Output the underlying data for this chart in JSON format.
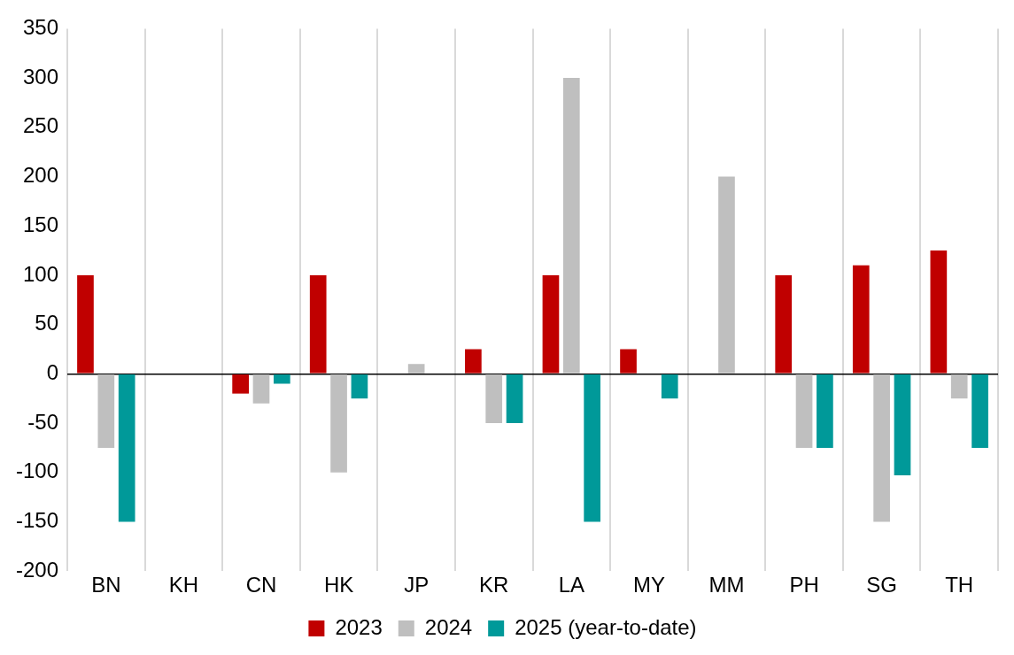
{
  "chart_data": {
    "type": "bar",
    "categories": [
      "BN",
      "KH",
      "CN",
      "HK",
      "JP",
      "KR",
      "LA",
      "MY",
      "MM",
      "PH",
      "SG",
      "TH"
    ],
    "series": [
      {
        "name": "2023",
        "color": "#c00000",
        "values": [
          100,
          null,
          -20,
          100,
          null,
          25,
          100,
          25,
          null,
          100,
          110,
          125
        ]
      },
      {
        "name": "2024",
        "color": "#bfbfbf",
        "values": [
          -75,
          null,
          -30,
          -100,
          10,
          -50,
          300,
          null,
          200,
          -75,
          -150,
          -25
        ]
      },
      {
        "name": "2025 (year-to-date)",
        "color": "#009999",
        "values": [
          -150,
          null,
          -10,
          -25,
          null,
          -50,
          -150,
          -25,
          null,
          -75,
          -103,
          -75
        ]
      }
    ],
    "ylim": [
      -200,
      350
    ],
    "yticks": [
      -200,
      -150,
      -100,
      -50,
      0,
      50,
      100,
      150,
      200,
      250,
      300,
      350
    ],
    "grid": "x",
    "legend": "bottom"
  }
}
